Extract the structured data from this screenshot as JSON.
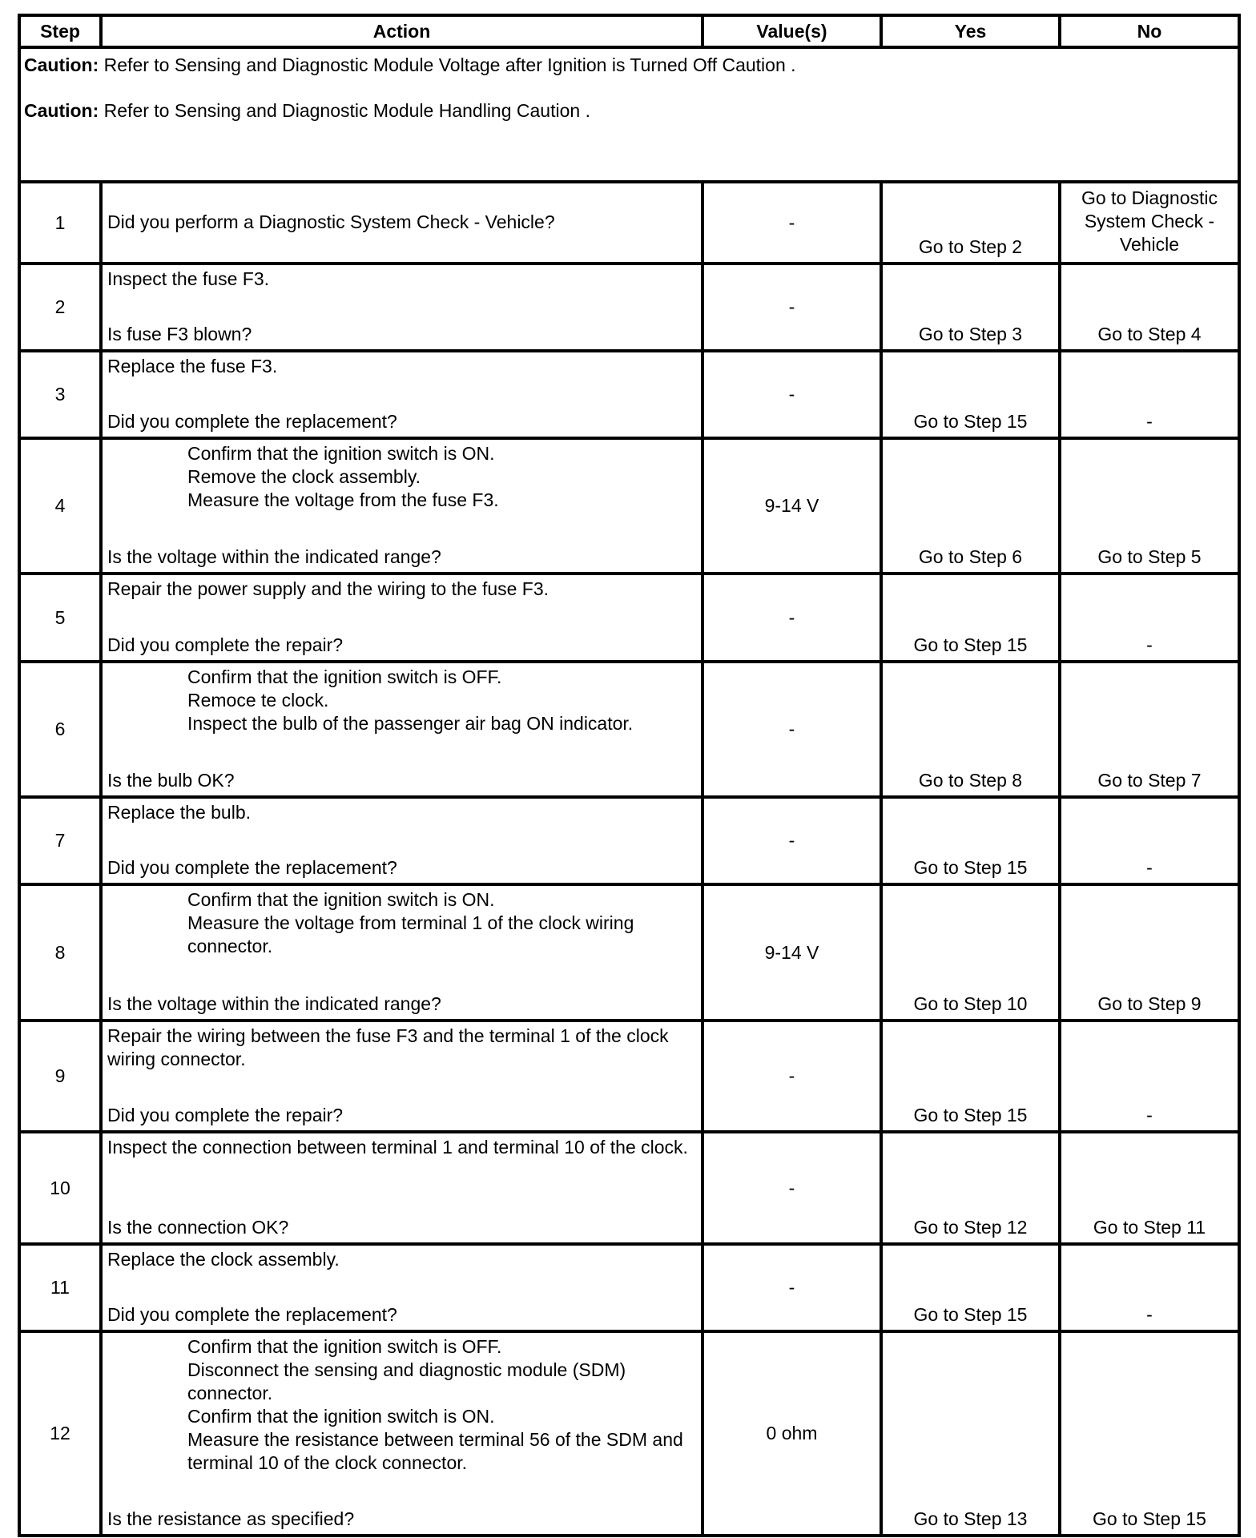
{
  "headers": {
    "step": "Step",
    "action": "Action",
    "values": "Value(s)",
    "yes": "Yes",
    "no": "No"
  },
  "cautions": [
    {
      "label": "Caution:",
      "text": " Refer to Sensing and Diagnostic Module Voltage after Ignition is Turned Off Caution ."
    },
    {
      "label": "Caution:",
      "text": " Refer to Sensing and Diagnostic Module Handling Caution ."
    }
  ],
  "rows": [
    {
      "step": "1",
      "indented": false,
      "action": [],
      "question": "Did you perform a Diagnostic System Check - Vehicle?",
      "value": "-",
      "yes": "Go to Step 2",
      "no": "Go to Diagnostic System Check - Vehicle"
    },
    {
      "step": "2",
      "indented": false,
      "action": [
        "Inspect the fuse F3."
      ],
      "question": "Is fuse F3 blown?",
      "value": "-",
      "yes": "Go to Step 3",
      "no": "Go to Step 4"
    },
    {
      "step": "3",
      "indented": false,
      "action": [
        "Replace the fuse F3."
      ],
      "question": "Did you complete the replacement?",
      "value": "-",
      "yes": "Go to Step 15",
      "no": "-"
    },
    {
      "step": "4",
      "indented": true,
      "action": [
        "Confirm that the ignition switch is ON.",
        "Remove the clock assembly.",
        "Measure the voltage from the fuse F3."
      ],
      "question": "Is the voltage within the indicated range?",
      "value": "9-14 V",
      "yes": "Go to Step 6",
      "no": "Go to Step 5"
    },
    {
      "step": "5",
      "indented": false,
      "action": [
        "Repair the power supply and the wiring to the fuse F3."
      ],
      "question": "Did you complete the repair?",
      "value": "-",
      "yes": "Go to Step 15",
      "no": "-"
    },
    {
      "step": "6",
      "indented": true,
      "action": [
        "Confirm that the ignition switch is OFF.",
        "Remoce te clock.",
        "Inspect the bulb of the passenger air bag ON indicator."
      ],
      "question": "Is the bulb OK?",
      "value": "-",
      "yes": "Go to Step 8",
      "no": "Go to Step 7"
    },
    {
      "step": "7",
      "indented": false,
      "action": [
        "Replace the bulb."
      ],
      "question": "Did you complete the replacement?",
      "value": "-",
      "yes": "Go to Step 15",
      "no": "-"
    },
    {
      "step": "8",
      "indented": true,
      "action": [
        "Confirm that the ignition switch is ON.",
        "Measure the voltage from terminal 1 of the clock wiring connector."
      ],
      "question": "Is the voltage within the indicated range?",
      "value": "9-14 V",
      "yes": "Go to Step 10",
      "no": "Go to Step 9"
    },
    {
      "step": "9",
      "indented": false,
      "action": [
        "Repair the wiring between the fuse F3 and the terminal 1 of the clock wiring connector."
      ],
      "question": "Did you complete the repair?",
      "value": "-",
      "yes": "Go to Step 15",
      "no": "-"
    },
    {
      "step": "10",
      "indented": false,
      "action": [
        "Inspect the connection between terminal 1 and terminal 10 of the clock."
      ],
      "question": "Is the connection OK?",
      "value": "-",
      "yes": "Go to Step 12",
      "no": "Go to Step 11"
    },
    {
      "step": "11",
      "indented": false,
      "action": [
        "Replace the clock assembly."
      ],
      "question": "Did you complete the replacement?",
      "value": "-",
      "yes": "Go to Step 15",
      "no": "-"
    },
    {
      "step": "12",
      "indented": true,
      "action": [
        "Confirm that the ignition switch is OFF.",
        "Disconnect the sensing and diagnostic module (SDM) connector.",
        "Confirm that the ignition switch is ON.",
        "Measure the resistance between terminal 56 of the SDM and terminal 10 of the clock connector."
      ],
      "question": "Is the resistance as specified?",
      "value": "0 ohm",
      "yes": "Go to Step 13",
      "no": "Go to Step 15"
    }
  ]
}
